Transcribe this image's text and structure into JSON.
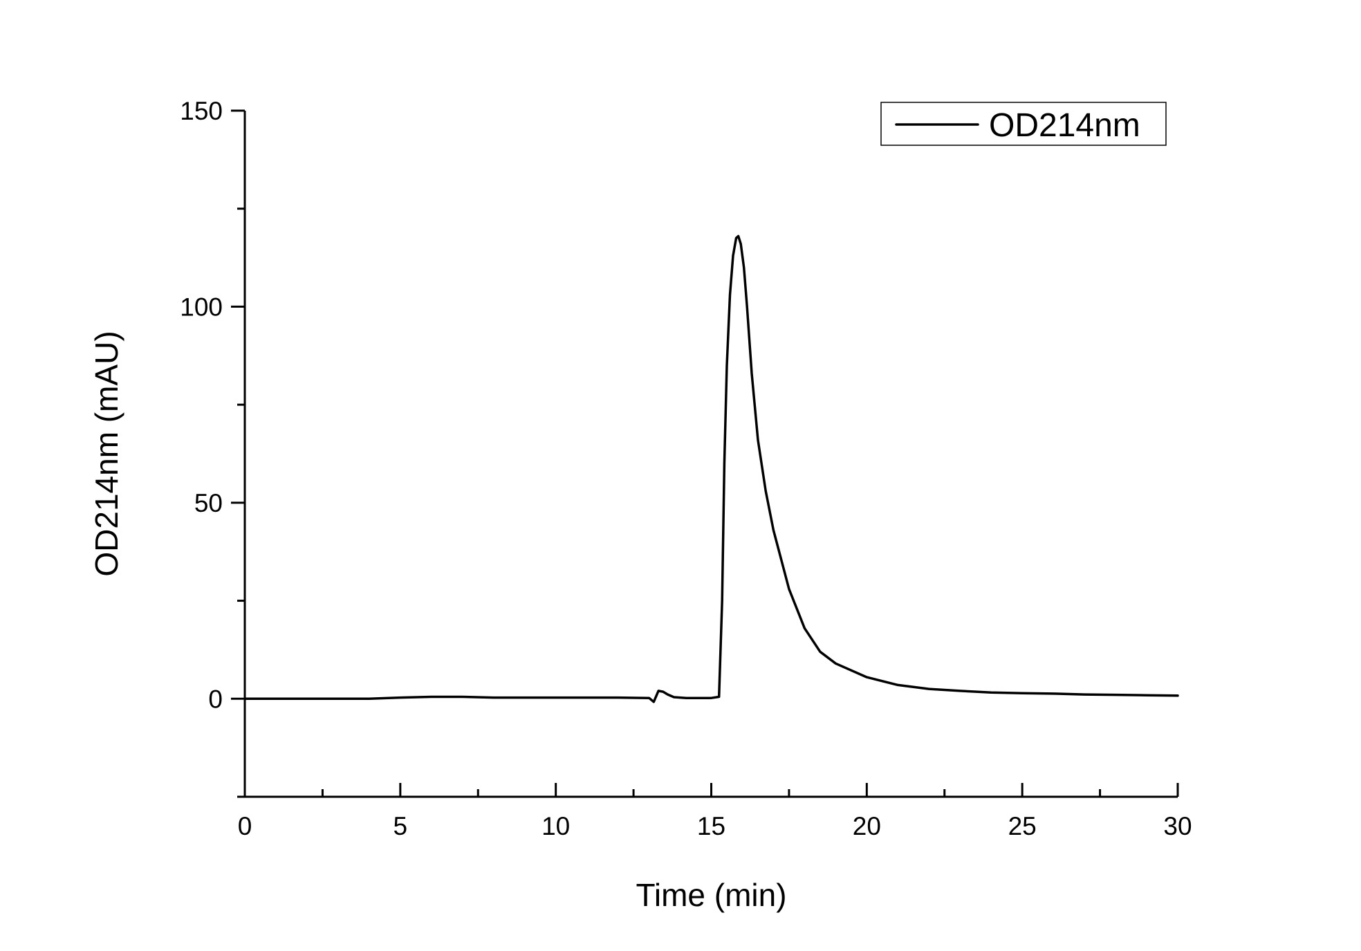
{
  "chart_data": {
    "type": "line",
    "title": "",
    "xlabel": "Time (min)",
    "ylabel": "OD214nm (mAU)",
    "xlim": [
      0,
      30
    ],
    "ylim": [
      -25,
      150
    ],
    "x_ticks": [
      0,
      5,
      10,
      15,
      20,
      25,
      30
    ],
    "x_tick_labels": [
      "0",
      "5",
      "10",
      "15",
      "20",
      "25",
      "30"
    ],
    "x_minor_step": 2.5,
    "y_ticks": [
      0,
      50,
      100,
      150
    ],
    "y_tick_labels": [
      "0",
      "50",
      "100",
      "150"
    ],
    "y_minor_step": 25,
    "grid": false,
    "legend": {
      "position": "top-right",
      "entries": [
        "OD214nm"
      ]
    },
    "series": [
      {
        "name": "OD214nm",
        "color": "#000000",
        "x": [
          0,
          2,
          4,
          5,
          6,
          7,
          8,
          10,
          12,
          13,
          13.15,
          13.3,
          13.45,
          13.6,
          13.8,
          14.2,
          15.0,
          15.25,
          15.35,
          15.42,
          15.5,
          15.6,
          15.7,
          15.8,
          15.87,
          15.95,
          16.05,
          16.15,
          16.3,
          16.5,
          16.75,
          17.0,
          17.5,
          18.0,
          18.5,
          19.0,
          20.0,
          21.0,
          22.0,
          23.0,
          24.0,
          25.0,
          26.0,
          27.0,
          28.0,
          29.0,
          30.0
        ],
        "y": [
          0,
          0,
          0,
          0.3,
          0.5,
          0.5,
          0.3,
          0.3,
          0.3,
          0.2,
          -0.8,
          2,
          1.8,
          1.1,
          0.4,
          0.2,
          0.2,
          0.5,
          25,
          60,
          85,
          103,
          113,
          117.5,
          118,
          116,
          110,
          100,
          83,
          66,
          53,
          43,
          28,
          18,
          12,
          9,
          5.5,
          3.5,
          2.5,
          2,
          1.6,
          1.4,
          1.3,
          1.1,
          1,
          0.9,
          0.8
        ]
      }
    ]
  }
}
